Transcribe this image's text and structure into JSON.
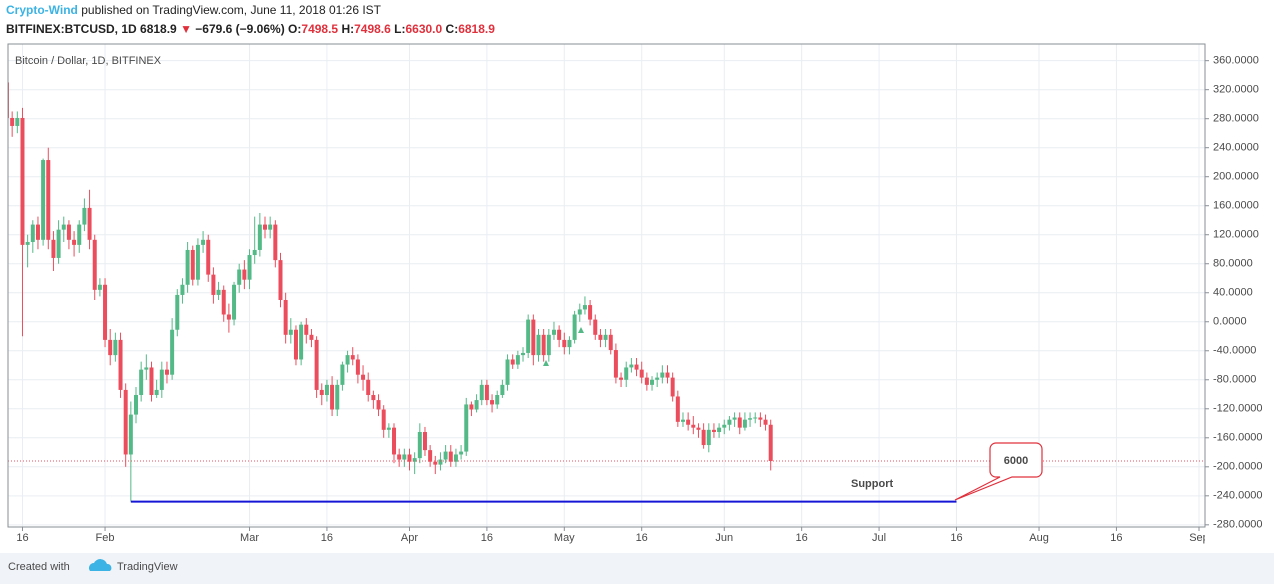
{
  "header": {
    "author": "Crypto-Wind",
    "published": "published on TradingView.com, June 11, 2018 01:26 IST",
    "symbol": "BITFINEX:BTCUSD, 1D",
    "last": "6818.9",
    "change": "−679.6 (−9.06%)",
    "open_label": "O:",
    "open": "7498.5",
    "high_label": "H:",
    "high": "7498.6",
    "low_label": "L:",
    "low": "6630.0",
    "close_label": "C:",
    "close": "6818.9"
  },
  "footer": {
    "created": "Created with",
    "brand": "TradingView"
  },
  "chart_data": {
    "type": "candlestick",
    "title": "Bitcoin / Dollar, 1D, BITFINEX",
    "up_color": "#53b987",
    "down_color": "#eb4d5c",
    "grid": true,
    "x": [
      "Jan 13",
      "Jan 14",
      "Jan 15",
      "Jan 16",
      "Jan 17",
      "Jan 18",
      "Jan 19",
      "Jan 20",
      "Jan 21",
      "Jan 22",
      "Jan 23",
      "Jan 24",
      "Jan 25",
      "Jan 26",
      "Jan 27",
      "Jan 28",
      "Jan 29",
      "Jan 30",
      "Jan 31",
      "Feb 1",
      "Feb 2",
      "Feb 3",
      "Feb 4",
      "Feb 5",
      "Feb 6",
      "Feb 7",
      "Feb 8",
      "Feb 9",
      "Feb 10",
      "Feb 11",
      "Feb 12",
      "Feb 13",
      "Feb 14",
      "Feb 15",
      "Feb 16",
      "Feb 17",
      "Feb 18",
      "Feb 19",
      "Feb 20",
      "Feb 21",
      "Feb 22",
      "Feb 23",
      "Feb 24",
      "Feb 25",
      "Feb 26",
      "Feb 27",
      "Feb 28",
      "Mar 1",
      "Mar 2",
      "Mar 3",
      "Mar 4",
      "Mar 5",
      "Mar 6",
      "Mar 7",
      "Mar 8",
      "Mar 9",
      "Mar 10",
      "Mar 11",
      "Mar 12",
      "Mar 13",
      "Mar 14",
      "Mar 15",
      "Mar 16",
      "Mar 17",
      "Mar 18",
      "Mar 19",
      "Mar 20",
      "Mar 21",
      "Mar 22",
      "Mar 23",
      "Mar 24",
      "Mar 25",
      "Mar 26",
      "Mar 27",
      "Mar 28",
      "Mar 29",
      "Mar 30",
      "Mar 31",
      "Apr 1",
      "Apr 2",
      "Apr 3",
      "Apr 4",
      "Apr 5",
      "Apr 6",
      "Apr 7",
      "Apr 8",
      "Apr 9",
      "Apr 10",
      "Apr 11",
      "Apr 12",
      "Apr 13",
      "Apr 14",
      "Apr 15",
      "Apr 16",
      "Apr 17",
      "Apr 18",
      "Apr 19",
      "Apr 20",
      "Apr 21",
      "Apr 22",
      "Apr 23",
      "Apr 24",
      "Apr 25",
      "Apr 26",
      "Apr 27",
      "Apr 28",
      "Apr 29",
      "Apr 30",
      "May 1",
      "May 2",
      "May 3",
      "May 4",
      "May 5",
      "May 6",
      "May 7",
      "May 8",
      "May 9",
      "May 10",
      "May 11",
      "May 12",
      "May 13",
      "May 14",
      "May 15",
      "May 16",
      "May 17",
      "May 18",
      "May 19",
      "May 20",
      "May 21",
      "May 22",
      "May 23",
      "May 24",
      "May 25",
      "May 26",
      "May 27",
      "May 28",
      "May 29",
      "May 30",
      "May 31",
      "Jun 1",
      "Jun 2",
      "Jun 3",
      "Jun 4",
      "Jun 5",
      "Jun 6",
      "Jun 7",
      "Jun 8",
      "Jun 9",
      "Jun 10"
    ],
    "open": [
      330,
      281,
      270,
      281,
      106,
      110,
      134,
      113,
      223,
      113,
      88,
      127,
      134,
      113,
      106,
      134,
      157,
      113,
      44,
      51,
      -25,
      -46,
      -25,
      -94,
      -183,
      -128,
      -101,
      -66,
      -63,
      -101,
      -94,
      -66,
      -73,
      -11,
      37,
      51,
      99,
      58,
      106,
      113,
      65,
      37,
      44,
      10,
      3,
      51,
      72,
      58,
      92,
      99,
      134,
      127,
      134,
      85,
      30,
      -18,
      -11,
      -52,
      -4,
      -18,
      -25,
      -94,
      -101,
      -87,
      -121,
      -87,
      -59,
      -46,
      -52,
      -73,
      -80,
      -101,
      -108,
      -121,
      -149,
      -146,
      -183,
      -190,
      -183,
      -193,
      -188,
      -152,
      -177,
      -193,
      -197,
      -190,
      -179,
      -193,
      -183,
      -179,
      -114,
      -121,
      -108,
      -87,
      -108,
      -114,
      -101,
      -87,
      -52,
      -59,
      -46,
      -43,
      3,
      -46,
      -18,
      -46,
      -18,
      -11,
      -25,
      -35,
      -25,
      10,
      17,
      23,
      3,
      -18,
      -25,
      -18,
      -39,
      -77,
      -80,
      -63,
      -59,
      -66,
      -77,
      -87,
      -80,
      -77,
      -70,
      -77,
      -103,
      -138,
      -135,
      -142,
      -146,
      -149,
      -170,
      -149,
      -152,
      -146,
      -142,
      -135,
      -132,
      -146,
      -135,
      -133,
      -132,
      -135,
      -142
    ],
    "high": [
      360,
      290,
      290,
      295,
      120,
      140,
      145,
      225,
      240,
      125,
      140,
      145,
      140,
      125,
      140,
      170,
      182,
      120,
      60,
      60,
      -10,
      -15,
      -15,
      -85,
      -110,
      -90,
      -55,
      -45,
      -55,
      -80,
      -55,
      -55,
      5,
      45,
      60,
      110,
      105,
      115,
      125,
      120,
      75,
      55,
      50,
      25,
      55,
      80,
      85,
      100,
      145,
      150,
      145,
      145,
      140,
      95,
      40,
      5,
      -5,
      0,
      5,
      -10,
      -20,
      -85,
      -80,
      -75,
      -80,
      -55,
      -40,
      -35,
      -45,
      -60,
      -70,
      -95,
      -100,
      -115,
      -140,
      -140,
      -175,
      -175,
      -175,
      -180,
      -140,
      -145,
      -170,
      -185,
      -180,
      -170,
      -170,
      -175,
      -170,
      -105,
      -110,
      -100,
      -80,
      -80,
      -100,
      -95,
      -80,
      -45,
      -45,
      -40,
      -35,
      10,
      10,
      -10,
      -10,
      -10,
      0,
      -5,
      -15,
      -20,
      15,
      25,
      35,
      30,
      10,
      -10,
      -10,
      -10,
      -30,
      -70,
      -55,
      -50,
      -50,
      -55,
      -70,
      -75,
      -70,
      -60,
      -60,
      -70,
      -95,
      -125,
      -125,
      -130,
      -140,
      -140,
      -140,
      -140,
      -140,
      -135,
      -130,
      -125,
      -125,
      -125,
      -125,
      -125,
      -125,
      -128,
      -135
    ],
    "low": [
      265,
      255,
      260,
      -20,
      75,
      95,
      100,
      105,
      100,
      70,
      80,
      110,
      100,
      90,
      95,
      125,
      100,
      30,
      35,
      -35,
      -60,
      -55,
      -105,
      -200,
      -248,
      -140,
      -110,
      -80,
      -110,
      -105,
      -105,
      -85,
      -80,
      -20,
      25,
      40,
      50,
      50,
      95,
      55,
      25,
      30,
      0,
      -15,
      -5,
      40,
      45,
      45,
      80,
      90,
      115,
      115,
      75,
      20,
      -30,
      -30,
      -60,
      -60,
      -30,
      -35,
      -105,
      -115,
      -110,
      -130,
      -130,
      -95,
      -70,
      -60,
      -85,
      -95,
      -110,
      -120,
      -130,
      -160,
      -160,
      -195,
      -200,
      -200,
      -205,
      -210,
      -195,
      -185,
      -200,
      -210,
      -205,
      -195,
      -200,
      -200,
      -190,
      -185,
      -130,
      -125,
      -115,
      -115,
      -125,
      -120,
      -105,
      -95,
      -65,
      -65,
      -55,
      -50,
      -60,
      -55,
      -55,
      -55,
      -25,
      -35,
      -45,
      -45,
      -30,
      0,
      10,
      -5,
      -25,
      -35,
      -35,
      -45,
      -85,
      -90,
      -90,
      -70,
      -75,
      -85,
      -95,
      -95,
      -90,
      -85,
      -85,
      -110,
      -145,
      -145,
      -150,
      -155,
      -160,
      -175,
      -180,
      -160,
      -160,
      -155,
      -150,
      -145,
      -155,
      -150,
      -145,
      -140,
      -145,
      -150,
      -205
    ],
    "close": [
      281,
      270,
      281,
      106,
      110,
      134,
      113,
      223,
      113,
      88,
      127,
      134,
      113,
      106,
      134,
      157,
      113,
      44,
      51,
      -25,
      -46,
      -25,
      -94,
      -183,
      -128,
      -101,
      -66,
      -63,
      -101,
      -94,
      -66,
      -73,
      -11,
      37,
      51,
      99,
      58,
      106,
      113,
      65,
      37,
      44,
      10,
      3,
      51,
      72,
      58,
      92,
      99,
      134,
      127,
      134,
      85,
      30,
      -18,
      -11,
      -52,
      -4,
      -18,
      -25,
      -94,
      -101,
      -87,
      -121,
      -87,
      -59,
      -46,
      -52,
      -73,
      -80,
      -101,
      -108,
      -121,
      -149,
      -146,
      -183,
      -190,
      -183,
      -193,
      -188,
      -152,
      -177,
      -193,
      -197,
      -190,
      -179,
      -193,
      -183,
      -179,
      -114,
      -121,
      -108,
      -87,
      -108,
      -114,
      -101,
      -87,
      -52,
      -59,
      -46,
      -43,
      3,
      -46,
      -18,
      -46,
      -18,
      -11,
      -25,
      -35,
      -25,
      10,
      17,
      23,
      3,
      -18,
      -25,
      -18,
      -39,
      -77,
      -80,
      -63,
      -59,
      -66,
      -77,
      -87,
      -80,
      -77,
      -70,
      -77,
      -103,
      -138,
      -135,
      -142,
      -146,
      -149,
      -170,
      -149,
      -152,
      -146,
      -142,
      -135,
      -132,
      -146,
      -135,
      -133,
      -132,
      -135,
      -142,
      -192
    ],
    "xlim": [
      "Jan 13",
      "Sep 1"
    ],
    "xticks": [
      {
        "value": "Jan 16",
        "label": "16"
      },
      {
        "value": "Feb 1",
        "label": "Feb"
      },
      {
        "value": "Mar 1",
        "label": "Mar"
      },
      {
        "value": "Mar 16",
        "label": "16"
      },
      {
        "value": "Apr 1",
        "label": "Apr"
      },
      {
        "value": "Apr 16",
        "label": "16"
      },
      {
        "value": "May 1",
        "label": "May"
      },
      {
        "value": "May 16",
        "label": "16"
      },
      {
        "value": "Jun 1",
        "label": "Jun"
      },
      {
        "value": "Jun 16",
        "label": "16"
      },
      {
        "value": "Jul 1",
        "label": "Jul"
      },
      {
        "value": "Jul 16",
        "label": "16"
      },
      {
        "value": "Aug 1",
        "label": "Aug"
      },
      {
        "value": "Aug 16",
        "label": "16"
      },
      {
        "value": "Sep 1",
        "label": "Sep"
      }
    ],
    "ylim": [
      -283,
      383
    ],
    "yticks": [
      {
        "value": 360,
        "label": "360.0000"
      },
      {
        "value": 320,
        "label": "320.0000"
      },
      {
        "value": 280,
        "label": "280.0000"
      },
      {
        "value": 240,
        "label": "240.0000"
      },
      {
        "value": 200,
        "label": "200.0000"
      },
      {
        "value": 160,
        "label": "160.0000"
      },
      {
        "value": 120,
        "label": "120.0000"
      },
      {
        "value": 80,
        "label": "80.0000"
      },
      {
        "value": 40,
        "label": "40.0000"
      },
      {
        "value": 0,
        "label": "0.0000"
      },
      {
        "value": -40,
        "label": "-40.0000"
      },
      {
        "value": -80,
        "label": "-80.0000"
      },
      {
        "value": -120,
        "label": "-120.0000"
      },
      {
        "value": -160,
        "label": "-160.0000"
      },
      {
        "value": -200,
        "label": "-200.0000"
      },
      {
        "value": -240,
        "label": "-240.0000"
      },
      {
        "value": -280,
        "label": "-280.0000"
      }
    ],
    "support_line": {
      "from": "Feb 6",
      "to": "Jul 16",
      "value": -248,
      "color": "#1515d6"
    },
    "annotations": {
      "support": "Support",
      "callout": "6000"
    }
  }
}
